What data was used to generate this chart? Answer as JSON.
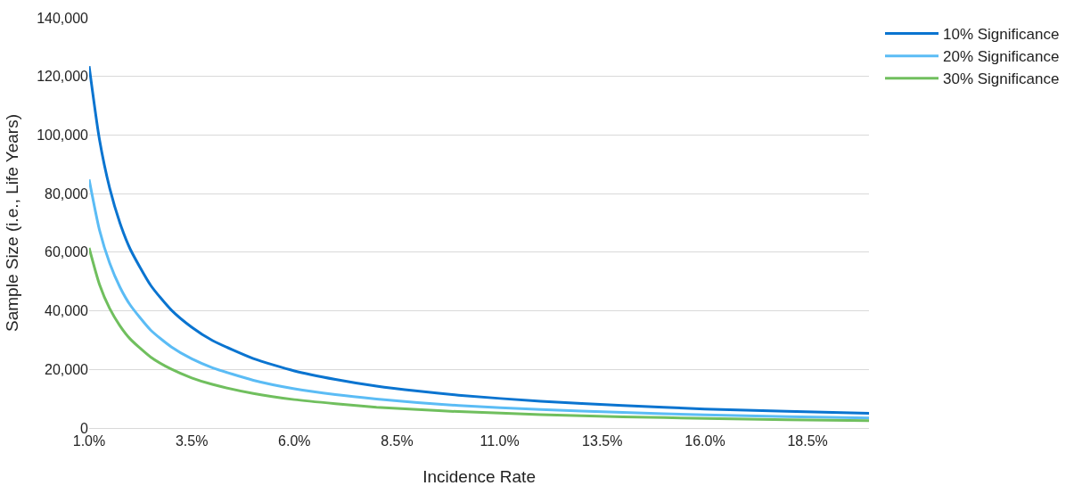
{
  "chart_data": {
    "type": "line",
    "xlabel": "Incidence Rate",
    "ylabel": "Sample Size (i.e., Life Years)",
    "x": [
      1.0,
      1.25,
      1.5,
      1.75,
      2,
      2.5,
      3,
      3.5,
      4,
      5,
      6,
      7,
      8,
      9,
      10,
      12,
      14,
      16,
      18,
      20
    ],
    "series": [
      {
        "name": "10% Significance",
        "color": "#0a74d0",
        "values": [
          123500,
          98600,
          81900,
          70000,
          61100,
          48700,
          40300,
          34400,
          29900,
          23700,
          19500,
          16600,
          14300,
          12600,
          11200,
          9100,
          7700,
          6500,
          5700,
          5000
        ]
      },
      {
        "name": "20% Significance",
        "color": "#5bbcf5",
        "values": [
          84800,
          67700,
          56300,
          48100,
          42000,
          33400,
          27700,
          23600,
          20600,
          16300,
          13400,
          11400,
          9900,
          8700,
          7700,
          6300,
          5300,
          4500,
          3900,
          3400
        ]
      },
      {
        "name": "30% Significance",
        "color": "#70bf5e",
        "values": [
          61500,
          49100,
          40800,
          34900,
          30400,
          24200,
          20100,
          17100,
          14900,
          11800,
          9700,
          8300,
          7100,
          6300,
          5600,
          4600,
          3800,
          3300,
          2800,
          2500
        ]
      }
    ],
    "xlim": [
      1.0,
      20.0
    ],
    "xticks": [
      {
        "value": 1.0,
        "label": "1.0%"
      },
      {
        "value": 3.5,
        "label": "3.5%"
      },
      {
        "value": 6.0,
        "label": "6.0%"
      },
      {
        "value": 8.5,
        "label": "8.5%"
      },
      {
        "value": 11.0,
        "label": "11.0%"
      },
      {
        "value": 13.5,
        "label": "13.5%"
      },
      {
        "value": 16.0,
        "label": "16.0%"
      },
      {
        "value": 18.5,
        "label": "18.5%"
      }
    ],
    "ylim": [
      0,
      140000
    ],
    "yticks": [
      0,
      {
        "value": 20000,
        "label": "20,000"
      },
      {
        "value": 40000,
        "label": "40,000"
      },
      {
        "value": 60000,
        "label": "60,000"
      },
      {
        "value": 80000,
        "label": "80,000"
      },
      {
        "value": 100000,
        "label": "100,000"
      },
      {
        "value": 120000,
        "label": "120,000"
      },
      {
        "value": 140000,
        "label": "140,000"
      }
    ],
    "grid": "y",
    "legend": "top right",
    "marker": "none",
    "line_style": "solid"
  }
}
